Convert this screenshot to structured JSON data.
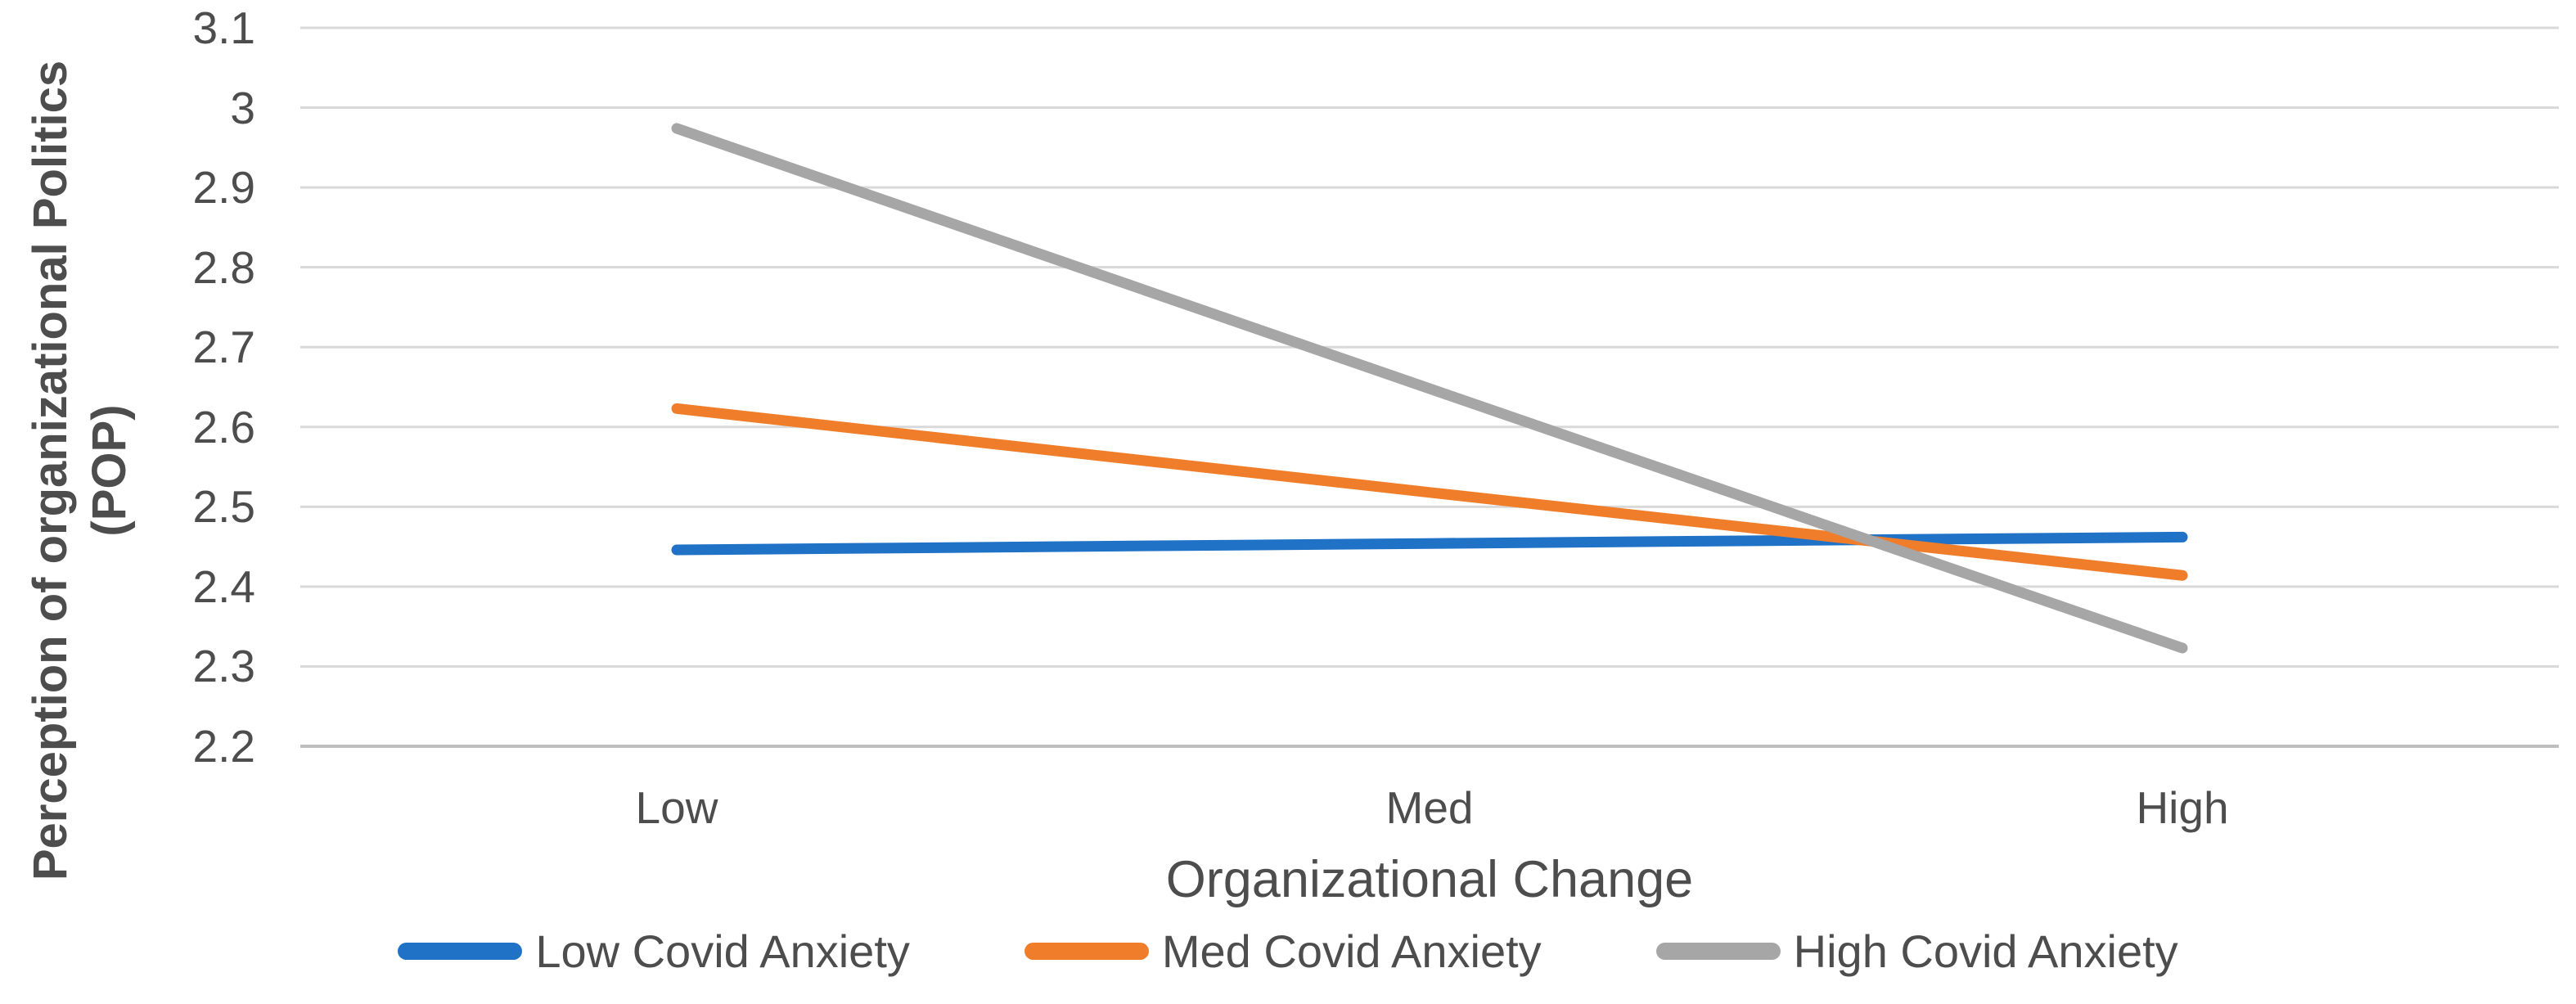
{
  "chart_data": {
    "type": "line",
    "categories": [
      "Low",
      "Med",
      "High"
    ],
    "series": [
      {
        "name": "Low Covid Anxiety",
        "color": "#1F72C6",
        "values": [
          2.446,
          2.454,
          2.462
        ]
      },
      {
        "name": "Med Covid Anxiety",
        "color": "#F07D2A",
        "values": [
          2.623,
          2.518,
          2.414
        ]
      },
      {
        "name": "High Covid Anxiety",
        "color": "#A6A6A6",
        "values": [
          2.974,
          2.648,
          2.323
        ]
      }
    ],
    "title": "",
    "xlabel": "Organizational Change",
    "ylabel": "Perception of organizational Politics (POP)",
    "ylabel_lines": [
      "Perception of organizational Politics",
      "(POP)"
    ],
    "ylim": [
      2.2,
      3.1
    ],
    "ytick_step": 0.1,
    "yticks": [
      "3.1",
      "3",
      "2.9",
      "2.8",
      "2.7",
      "2.6",
      "2.5",
      "2.4",
      "2.3",
      "2.2"
    ],
    "grid": "horizontal",
    "grid_color": "#D9D9D9",
    "axis_line_color": "#BFBFBF",
    "text_color": "#4D4D4D",
    "legend_position": "bottom"
  }
}
